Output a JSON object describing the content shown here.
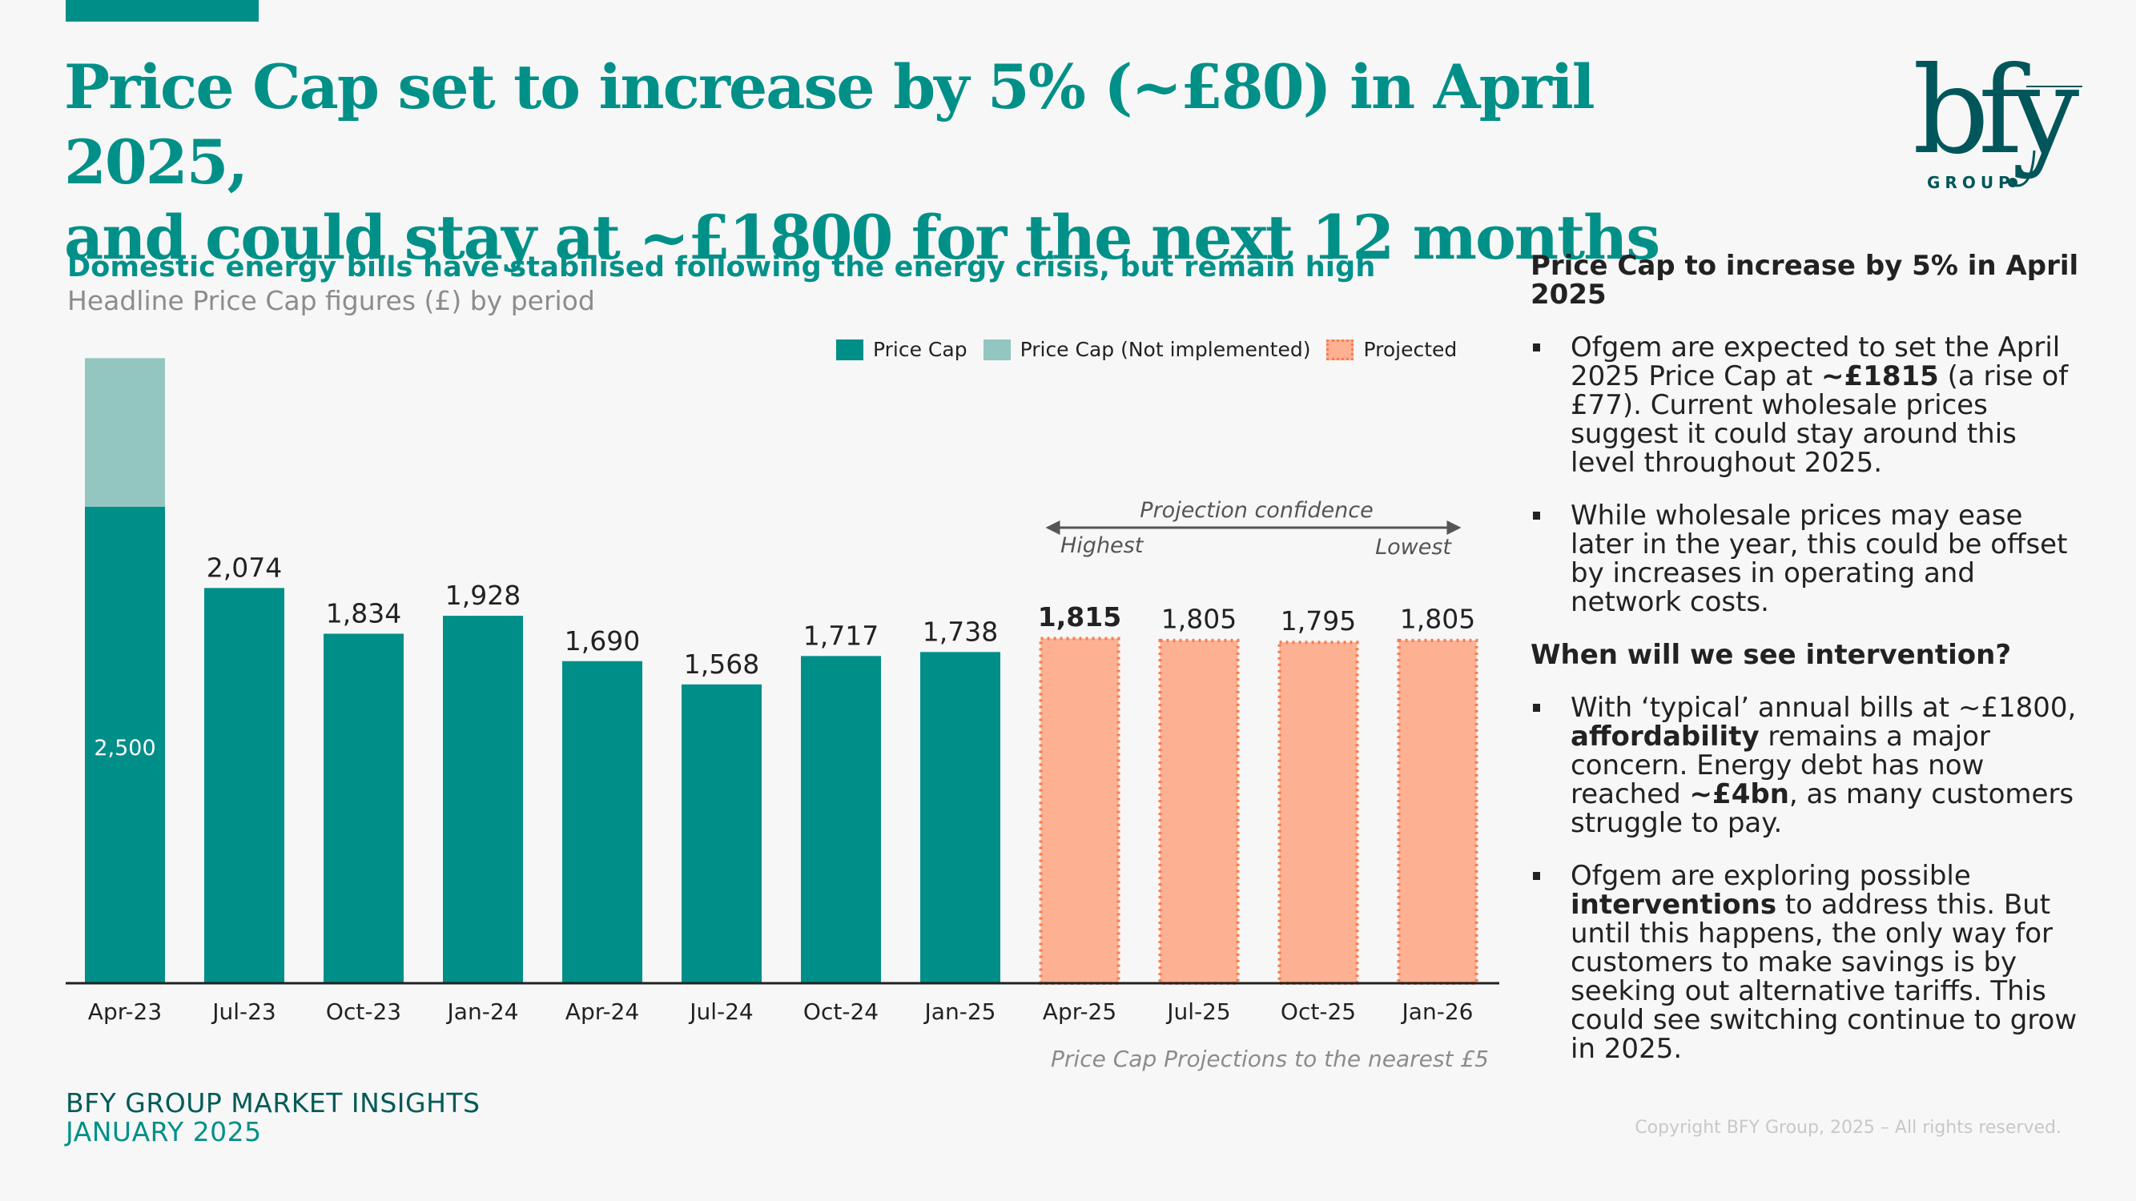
{
  "header": {
    "title_line1": "Price Cap set to increase by 5% (~£80) in April 2025,",
    "title_line2": "and could stay at ~£1800 for the next 12 months",
    "logo_text": "bfy",
    "logo_subtext": "GROUP"
  },
  "colors": {
    "brand_teal": "#008e89",
    "not_implemented": "#93c6c1",
    "projected_fill": "#fdb092",
    "projected_border": "#f77c4c",
    "logo": "#00565a"
  },
  "chart_section": {
    "heading": "Domestic energy bills have stabilised following the energy crisis, but remain high",
    "subheading": "Headline Price Cap figures (£) by period",
    "note": "Price Cap Projections to the nearest £5",
    "projection_confidence": {
      "title": "Projection confidence",
      "left": "Highest",
      "right": "Lowest"
    }
  },
  "chart_data": {
    "type": "bar",
    "title": "Headline Price Cap figures (£) by period",
    "xlabel": "",
    "ylabel": "",
    "ylim": [
      0,
      3420
    ],
    "grid": false,
    "legend_position": "top-right",
    "legend": [
      "Price Cap",
      "Price Cap (Not implemented)",
      "Projected"
    ],
    "categories": [
      "Apr-23",
      "Jul-23",
      "Oct-23",
      "Jan-24",
      "Apr-24",
      "Jul-24",
      "Oct-24",
      "Jan-25",
      "Apr-25",
      "Jul-25",
      "Oct-25",
      "Jan-26"
    ],
    "series": [
      {
        "name": "Price Cap",
        "values": [
          2500,
          2074,
          1834,
          1928,
          1690,
          1568,
          1717,
          1738,
          null,
          null,
          null,
          null
        ]
      },
      {
        "name": "Price Cap (Not implemented)",
        "values": [
          780,
          null,
          null,
          null,
          null,
          null,
          null,
          null,
          null,
          null,
          null,
          null
        ]
      },
      {
        "name": "Projected",
        "values": [
          null,
          null,
          null,
          null,
          null,
          null,
          null,
          null,
          1815,
          1805,
          1795,
          1805
        ]
      }
    ],
    "data_labels": [
      "2,500",
      "2,074",
      "1,834",
      "1,928",
      "1,690",
      "1,568",
      "1,717",
      "1,738",
      "1,815",
      "1,805",
      "1,795",
      "1,805"
    ],
    "bold_label_index": 8,
    "inside_label_index": 0
  },
  "right_panel": {
    "section1": {
      "heading": "Price Cap to increase by 5% in April 2025",
      "bullets": [
        [
          {
            "t": "Ofgem are expected to set the April 2025 Price Cap at "
          },
          {
            "t": "~£1815",
            "b": true
          },
          {
            "t": " (a rise of £77). Current wholesale prices suggest it could stay around this level throughout 2025."
          }
        ],
        [
          {
            "t": "While wholesale prices may ease later in the year, this could be offset by increases in operating and network costs."
          }
        ]
      ]
    },
    "section2": {
      "heading": "When will we see intervention?",
      "bullets": [
        [
          {
            "t": "With ‘typical’ annual bills at ~£1800, "
          },
          {
            "t": "affordability",
            "b": true
          },
          {
            "t": " remains a major concern. Energy debt has now reached "
          },
          {
            "t": "~£4bn",
            "b": true
          },
          {
            "t": ", as many customers struggle to pay."
          }
        ],
        [
          {
            "t": "Ofgem are exploring possible "
          },
          {
            "t": "interventions",
            "b": true
          },
          {
            "t": " to address this. But until this happens, the only way for customers to make savings is by seeking out alternative tariffs. This could see switching continue to grow in 2025."
          }
        ]
      ]
    }
  },
  "footer": {
    "line1": "BFY GROUP MARKET INSIGHTS",
    "line2": "JANUARY 2025",
    "copyright": "Copyright BFY Group, 2025 – All rights reserved."
  }
}
